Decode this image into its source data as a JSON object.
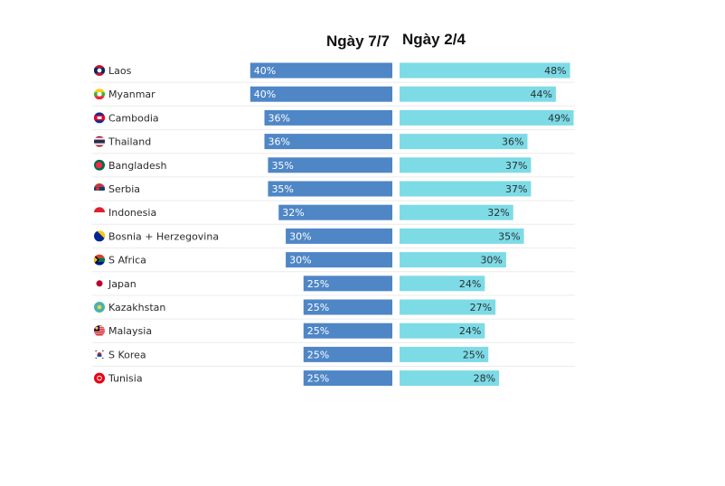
{
  "chart_data": {
    "type": "bar",
    "orientation": "horizontal",
    "layout": "back-to-back",
    "title": "",
    "xlabel": "",
    "ylabel": "",
    "grid": false,
    "value_suffix": "%",
    "xlim": [
      0,
      50
    ],
    "categories": [
      "Laos",
      "Myanmar",
      "Cambodia",
      "Thailand",
      "Bangladesh",
      "Serbia",
      "Indonesia",
      "Bosnia + Herzegovina",
      "S Africa",
      "Japan",
      "Kazakhstan",
      "Malaysia",
      "S Korea",
      "Tunisia"
    ],
    "flags": [
      "laos-flag-icon",
      "myanmar-flag-icon",
      "cambodia-flag-icon",
      "thailand-flag-icon",
      "bangladesh-flag-icon",
      "serbia-flag-icon",
      "indonesia-flag-icon",
      "bosnia-flag-icon",
      "south-africa-flag-icon",
      "japan-flag-icon",
      "kazakhstan-flag-icon",
      "malaysia-flag-icon",
      "south-korea-flag-icon",
      "tunisia-flag-icon"
    ],
    "series": [
      {
        "name": "Ngày 7/7",
        "color": "#4f86c6",
        "side": "left",
        "values": [
          40,
          40,
          36,
          36,
          35,
          35,
          32,
          30,
          30,
          25,
          25,
          25,
          25,
          25
        ]
      },
      {
        "name": "Ngày 2/4",
        "color": "#7ddbe6",
        "side": "right",
        "values": [
          48,
          44,
          49,
          36,
          37,
          37,
          32,
          35,
          30,
          24,
          27,
          24,
          25,
          28
        ]
      }
    ]
  },
  "headers": {
    "left": "Ngày 7/7",
    "right": "Ngày 2/4"
  },
  "colors": {
    "separator": "#ececec",
    "label_text": "#2a2a2a"
  }
}
